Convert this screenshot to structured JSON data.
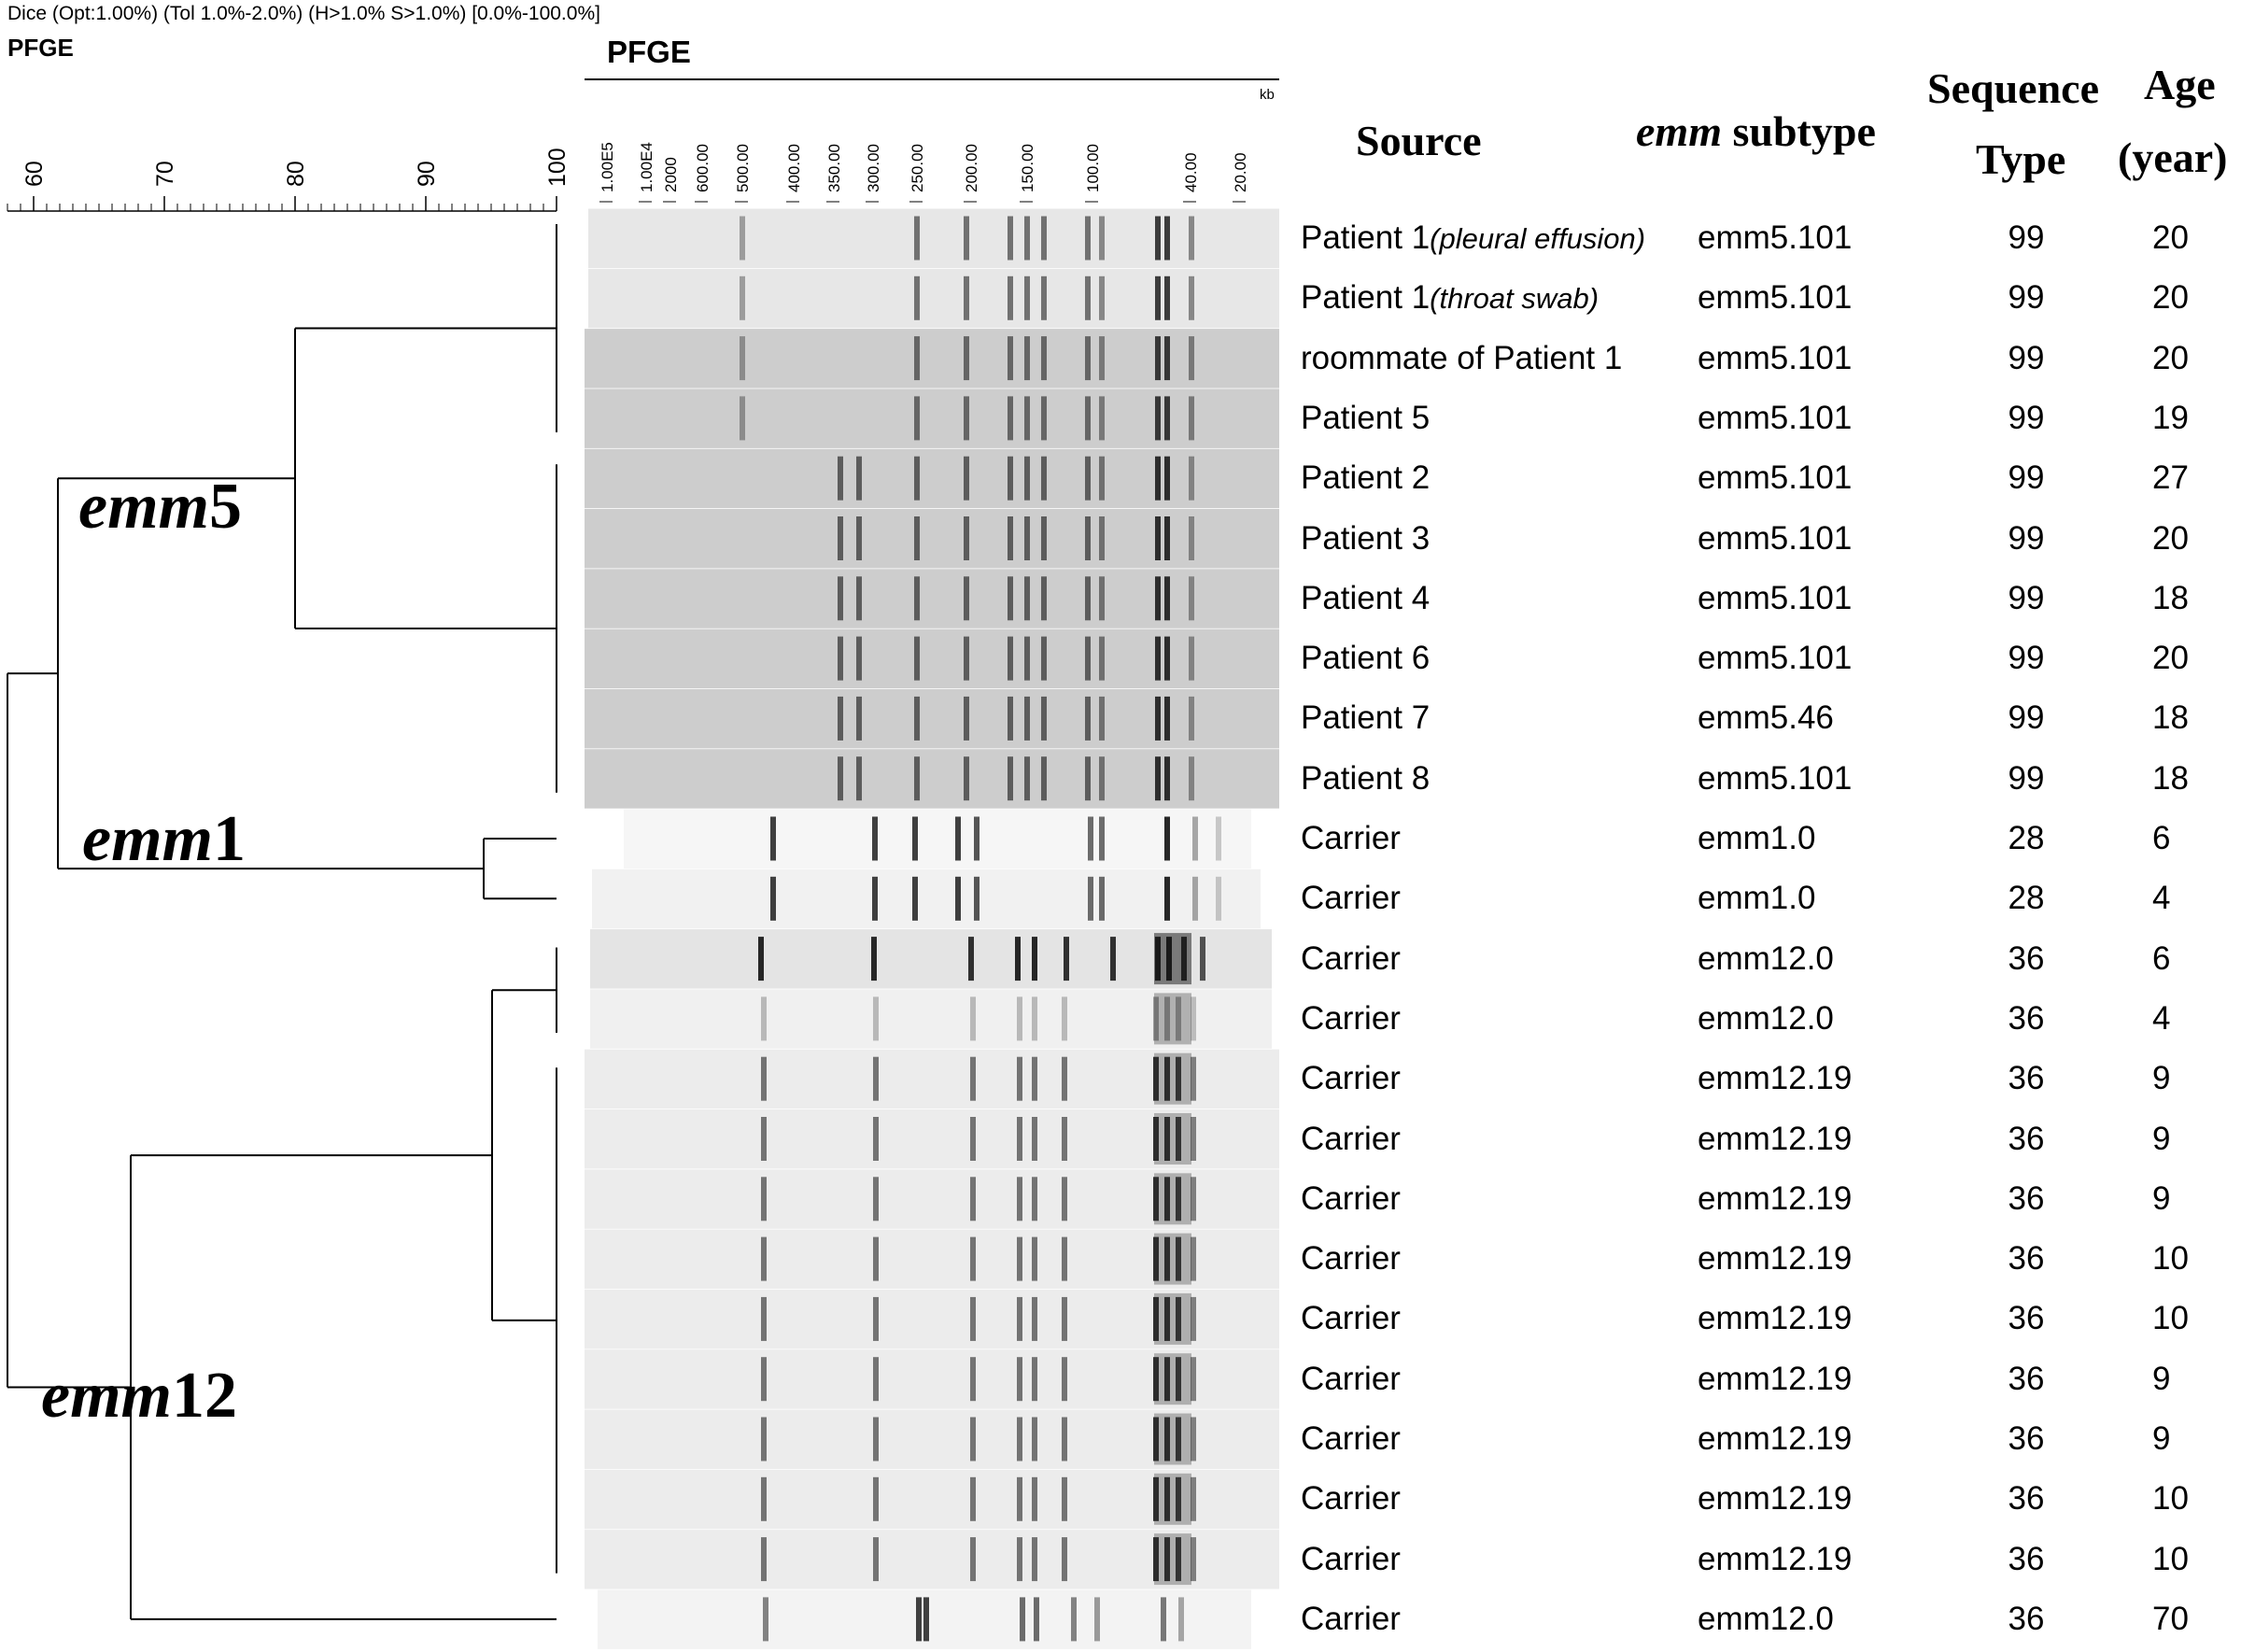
{
  "header": {
    "settings": "Dice (Opt:1.00%) (Tol 1.0%-2.0%) (H>1.0% S>1.0%) [0.0%-100.0%]",
    "left_title": "PFGE",
    "gel_title": "PFGE",
    "kb_label": "kb"
  },
  "similarity_scale": {
    "ticks": [
      "60",
      "70",
      "80",
      "90",
      "100"
    ],
    "range": [
      58,
      100
    ]
  },
  "size_markers": [
    "1.00E5",
    "1.00E4",
    "2000",
    "600.00",
    "500.00",
    "400.00",
    "350.00",
    "300.00",
    "250.00",
    "200.00",
    "150.00",
    "100.00",
    "40.00",
    "20.00"
  ],
  "columns": {
    "source": "Source",
    "emm_italic": "emm",
    "emm_rest": " subtype",
    "seq_line1": "Sequence",
    "seq_line2": "Type",
    "age_line1": "Age",
    "age_line2": "(year)"
  },
  "clusters": [
    {
      "italic": "emm",
      "number": "5"
    },
    {
      "italic": "emm",
      "number": "1"
    },
    {
      "italic": "emm",
      "number": "12"
    }
  ],
  "rows": [
    {
      "source": "Patient  1",
      "extra": "(pleural effusion)",
      "subtype": "emm5.101",
      "st": "99",
      "age": "20"
    },
    {
      "source": "Patient  1",
      "extra": "(throat swab)",
      "subtype": "emm5.101",
      "st": "99",
      "age": "20"
    },
    {
      "source": "roommate of Patient 1",
      "extra": "",
      "subtype": "emm5.101",
      "st": "99",
      "age": "20"
    },
    {
      "source": "Patient  5",
      "extra": "",
      "subtype": "emm5.101",
      "st": "99",
      "age": "19"
    },
    {
      "source": "Patient  2",
      "extra": "",
      "subtype": "emm5.101",
      "st": "99",
      "age": "27"
    },
    {
      "source": "Patient  3",
      "extra": "",
      "subtype": "emm5.101",
      "st": "99",
      "age": "20"
    },
    {
      "source": "Patient  4",
      "extra": "",
      "subtype": "emm5.101",
      "st": "99",
      "age": "18"
    },
    {
      "source": "Patient  6",
      "extra": "",
      "subtype": "emm5.101",
      "st": "99",
      "age": "20"
    },
    {
      "source": "Patient  7",
      "extra": "",
      "subtype": "emm5.46",
      "st": "99",
      "age": "18"
    },
    {
      "source": "Patient  8",
      "extra": "",
      "subtype": "emm5.101",
      "st": "99",
      "age": "18"
    },
    {
      "source": "Carrier",
      "extra": "",
      "subtype": "emm1.0",
      "st": "28",
      "age": "6"
    },
    {
      "source": "Carrier",
      "extra": "",
      "subtype": "emm1.0",
      "st": "28",
      "age": "4"
    },
    {
      "source": "Carrier",
      "extra": "",
      "subtype": "emm12.0",
      "st": "36",
      "age": "6"
    },
    {
      "source": "Carrier",
      "extra": "",
      "subtype": "emm12.0",
      "st": "36",
      "age": "4"
    },
    {
      "source": "Carrier",
      "extra": "",
      "subtype": "emm12.19",
      "st": "36",
      "age": "9"
    },
    {
      "source": "Carrier",
      "extra": "",
      "subtype": "emm12.19",
      "st": "36",
      "age": "9"
    },
    {
      "source": "Carrier",
      "extra": "",
      "subtype": "emm12.19",
      "st": "36",
      "age": "9"
    },
    {
      "source": "Carrier",
      "extra": "",
      "subtype": "emm12.19",
      "st": "36",
      "age": "10"
    },
    {
      "source": "Carrier",
      "extra": "",
      "subtype": "emm12.19",
      "st": "36",
      "age": "10"
    },
    {
      "source": "Carrier",
      "extra": "",
      "subtype": "emm12.19",
      "st": "36",
      "age": "9"
    },
    {
      "source": "Carrier",
      "extra": "",
      "subtype": "emm12.19",
      "st": "36",
      "age": "9"
    },
    {
      "source": "Carrier",
      "extra": "",
      "subtype": "emm12.19",
      "st": "36",
      "age": "10"
    },
    {
      "source": "Carrier",
      "extra": "",
      "subtype": "emm12.19",
      "st": "36",
      "age": "10"
    },
    {
      "source": "Carrier",
      "extra": "",
      "subtype": "emm12.0",
      "st": "36",
      "age": "70"
    }
  ]
}
